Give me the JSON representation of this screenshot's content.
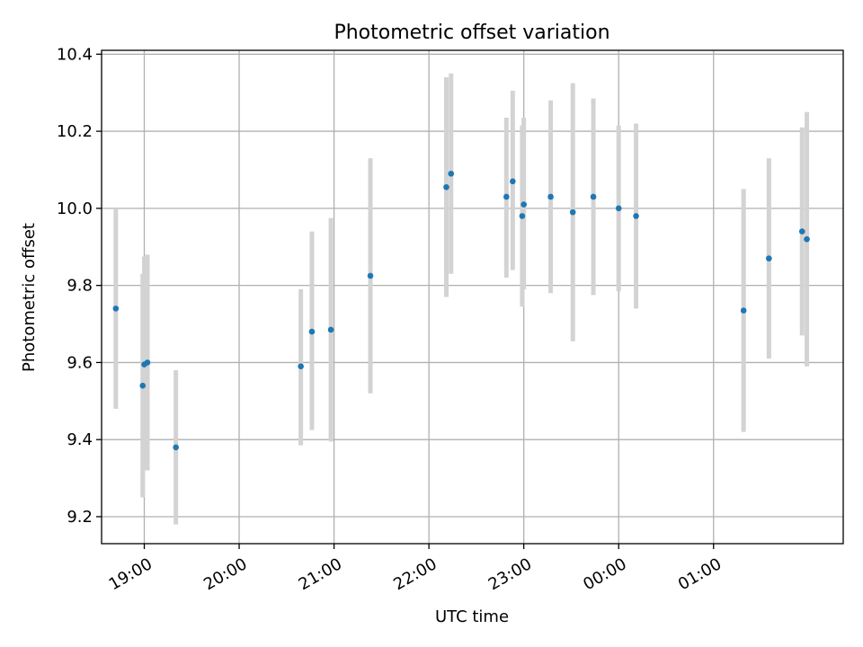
{
  "chart_data": {
    "type": "scatter",
    "title": "Photometric offset variation",
    "xlabel": "UTC time",
    "ylabel": "Photometric offset",
    "x_axis": "time (minutes after 18:00 UTC, continuing past midnight)",
    "xlim": [
      33,
      502
    ],
    "ylim": [
      9.13,
      10.41
    ],
    "x_ticks": [
      {
        "label": "19:00",
        "value": 60
      },
      {
        "label": "20:00",
        "value": 120
      },
      {
        "label": "21:00",
        "value": 180
      },
      {
        "label": "22:00",
        "value": 240
      },
      {
        "label": "23:00",
        "value": 300
      },
      {
        "label": "00:00",
        "value": 360
      },
      {
        "label": "01:00",
        "value": 420
      }
    ],
    "y_ticks": [
      9.2,
      9.4,
      9.6,
      9.8,
      10.0,
      10.2,
      10.4
    ],
    "y_tick_labels": [
      "9.2",
      "9.4",
      "9.6",
      "9.8",
      "10.0",
      "10.2",
      "10.4"
    ],
    "grid": true,
    "colors": {
      "point": "#1f77b4",
      "errorbar": "#d3d3d3",
      "grid": "#b0b0b0"
    },
    "series": [
      {
        "points": [
          {
            "x": 42,
            "y": 9.74,
            "ylo": 9.48,
            "yhi": 10.0
          },
          {
            "x": 59,
            "y": 9.54,
            "ylo": 9.25,
            "yhi": 9.83
          },
          {
            "x": 60,
            "y": 9.595,
            "ylo": 9.32,
            "yhi": 9.875
          },
          {
            "x": 62,
            "y": 9.6,
            "ylo": 9.32,
            "yhi": 9.88
          },
          {
            "x": 80,
            "y": 9.38,
            "ylo": 9.18,
            "yhi": 9.58
          },
          {
            "x": 159,
            "y": 9.59,
            "ylo": 9.385,
            "yhi": 9.79
          },
          {
            "x": 166,
            "y": 9.68,
            "ylo": 9.425,
            "yhi": 9.94
          },
          {
            "x": 178,
            "y": 9.685,
            "ylo": 9.395,
            "yhi": 9.975
          },
          {
            "x": 203,
            "y": 9.825,
            "ylo": 9.52,
            "yhi": 10.13
          },
          {
            "x": 251,
            "y": 10.055,
            "ylo": 9.77,
            "yhi": 10.34
          },
          {
            "x": 254,
            "y": 10.09,
            "ylo": 9.83,
            "yhi": 10.35
          },
          {
            "x": 289,
            "y": 10.03,
            "ylo": 9.82,
            "yhi": 10.235
          },
          {
            "x": 293,
            "y": 10.07,
            "ylo": 9.84,
            "yhi": 10.305
          },
          {
            "x": 299,
            "y": 9.98,
            "ylo": 9.745,
            "yhi": 10.215
          },
          {
            "x": 300,
            "y": 10.01,
            "ylo": 9.79,
            "yhi": 10.235
          },
          {
            "x": 317,
            "y": 10.03,
            "ylo": 9.78,
            "yhi": 10.28
          },
          {
            "x": 331,
            "y": 9.99,
            "ylo": 9.655,
            "yhi": 10.325
          },
          {
            "x": 344,
            "y": 10.03,
            "ylo": 9.775,
            "yhi": 10.285
          },
          {
            "x": 360,
            "y": 10.0,
            "ylo": 9.785,
            "yhi": 10.215
          },
          {
            "x": 371,
            "y": 9.98,
            "ylo": 9.74,
            "yhi": 10.22
          },
          {
            "x": 439,
            "y": 9.735,
            "ylo": 9.42,
            "yhi": 10.05
          },
          {
            "x": 455,
            "y": 9.87,
            "ylo": 9.61,
            "yhi": 10.13
          },
          {
            "x": 476,
            "y": 9.94,
            "ylo": 9.67,
            "yhi": 10.21
          },
          {
            "x": 479,
            "y": 9.92,
            "ylo": 9.59,
            "yhi": 10.25
          }
        ]
      }
    ]
  }
}
